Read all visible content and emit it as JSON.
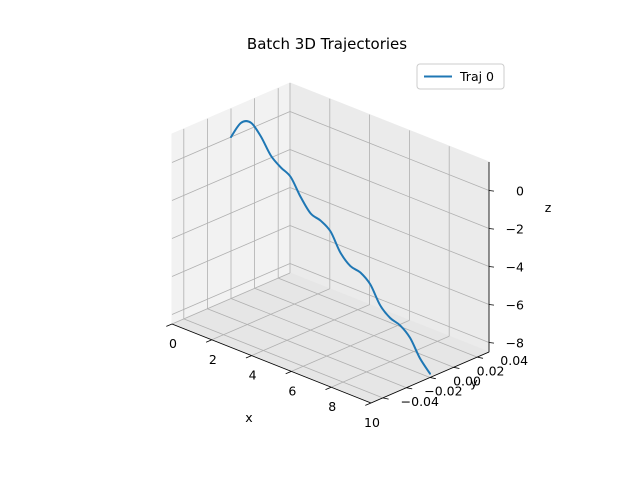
{
  "chart_data": {
    "type": "line",
    "projection": "3d",
    "title": "Batch 3D Trajectories",
    "xlabel": "x",
    "ylabel": "y",
    "zlabel": "z",
    "xlim": [
      0,
      10
    ],
    "ylim": [
      -0.05,
      0.05
    ],
    "zlim": [
      -8.5,
      1.5
    ],
    "x_ticks": [
      0,
      2,
      4,
      6,
      8,
      10
    ],
    "x_tick_labels": [
      "0",
      "2",
      "4",
      "6",
      "8",
      "10"
    ],
    "y_ticks": [
      -0.04,
      -0.02,
      0.0,
      0.02,
      0.04
    ],
    "y_tick_labels": [
      "−0.04",
      "−0.02",
      "0.00",
      "0.02",
      "0.04"
    ],
    "z_ticks": [
      0,
      -2,
      -4,
      -6,
      -8
    ],
    "z_tick_labels": [
      "0",
      "−2",
      "−4",
      "−6",
      "−8"
    ],
    "grid": true,
    "legend_position": "upper right",
    "series": [
      {
        "name": "Traj 0",
        "color": "#1f77b4",
        "x": [
          0.0,
          0.5,
          1.0,
          1.5,
          2.0,
          2.5,
          3.0,
          3.5,
          4.0,
          4.5,
          5.0,
          5.5,
          6.0,
          6.5,
          7.0,
          7.5,
          8.0,
          8.5,
          9.0,
          9.5,
          10.0
        ],
        "y": [
          0,
          0,
          0,
          0,
          0,
          0,
          0,
          0,
          0,
          0,
          0,
          0,
          0,
          0,
          0,
          0,
          0,
          0,
          0,
          0,
          0
        ],
        "z": [
          0.0,
          0.95,
          1.17,
          0.65,
          -0.14,
          -0.56,
          -0.86,
          -1.7,
          -2.36,
          -2.53,
          -2.89,
          -3.8,
          -4.3,
          -4.43,
          -4.85,
          -5.75,
          -6.2,
          -6.38,
          -6.83,
          -7.7,
          -8.3
        ]
      }
    ]
  }
}
